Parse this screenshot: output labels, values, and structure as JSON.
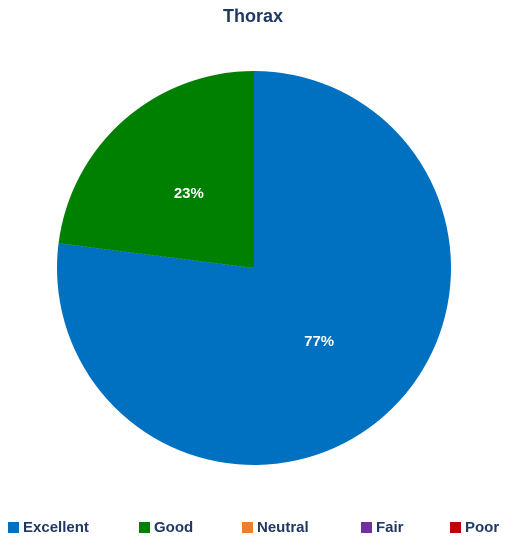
{
  "chart_data": {
    "type": "pie",
    "title": "Thorax",
    "categories": [
      "Excellent",
      "Good",
      "Neutral",
      "Fair",
      "Poor"
    ],
    "values": [
      77,
      23,
      0,
      0,
      0
    ],
    "data_labels": [
      "77%",
      "23%",
      "",
      "",
      ""
    ],
    "colors": [
      "#0070c0",
      "#008000",
      "#ed7d31",
      "#7030a0",
      "#c00000"
    ],
    "legend_position": "bottom"
  }
}
